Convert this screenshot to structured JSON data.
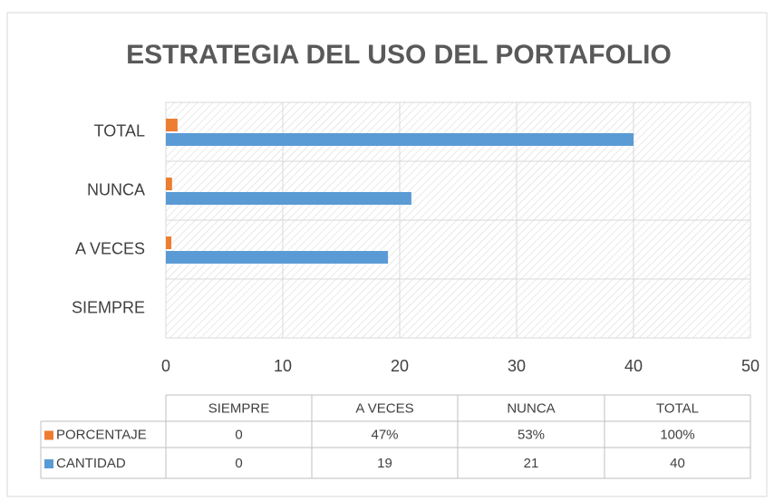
{
  "chart_data": {
    "type": "bar",
    "orientation": "horizontal",
    "title": "ESTRATEGIA DEL USO DEL PORTAFOLIO",
    "categories": [
      "SIEMPRE",
      "A VECES",
      "NUNCA",
      "TOTAL"
    ],
    "series": [
      {
        "name": "PORCENTAJE",
        "color": "#ed7d31",
        "values": [
          0,
          0.47,
          0.53,
          1
        ],
        "value_labels": [
          "0",
          "47%",
          "53%",
          "100%"
        ]
      },
      {
        "name": "CANTIDAD",
        "color": "#5b9bd5",
        "values": [
          0,
          19,
          21,
          40
        ]
      }
    ],
    "xlim": [
      0,
      50
    ],
    "xticks": [
      0,
      10,
      20,
      30,
      40,
      50
    ],
    "grid": true,
    "data_table": true
  }
}
